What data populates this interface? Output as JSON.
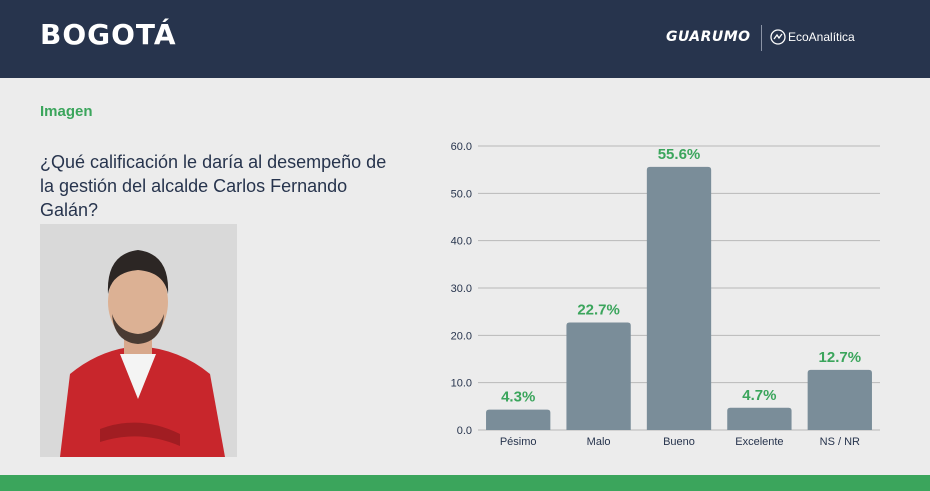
{
  "header": {
    "title": "BOGOTÁ",
    "logo_primary": "GUARUMO",
    "logo_secondary": "EcoAnalítica"
  },
  "section_label": "Imagen",
  "question": "¿Qué calificación le daría al desempeño de la gestión del alcalde Carlos Fernando Galán?",
  "colors": {
    "header_bg": "#27344d",
    "accent_green": "#3ba55c",
    "bar": "#7a8d99",
    "background": "#ececec"
  },
  "chart_data": {
    "type": "bar",
    "categories": [
      "Pésimo",
      "Malo",
      "Bueno",
      "Excelente",
      "NS / NR"
    ],
    "values": [
      4.3,
      22.7,
      55.6,
      4.7,
      12.7
    ],
    "value_labels": [
      "4.3%",
      "22.7%",
      "55.6%",
      "4.7%",
      "12.7%"
    ],
    "y_ticks": [
      "0.0",
      "10.0",
      "20.0",
      "30.0",
      "40.0",
      "50.0",
      "60.0"
    ],
    "ylim": [
      0,
      60
    ],
    "grid": true,
    "title": "",
    "xlabel": "",
    "ylabel": ""
  }
}
